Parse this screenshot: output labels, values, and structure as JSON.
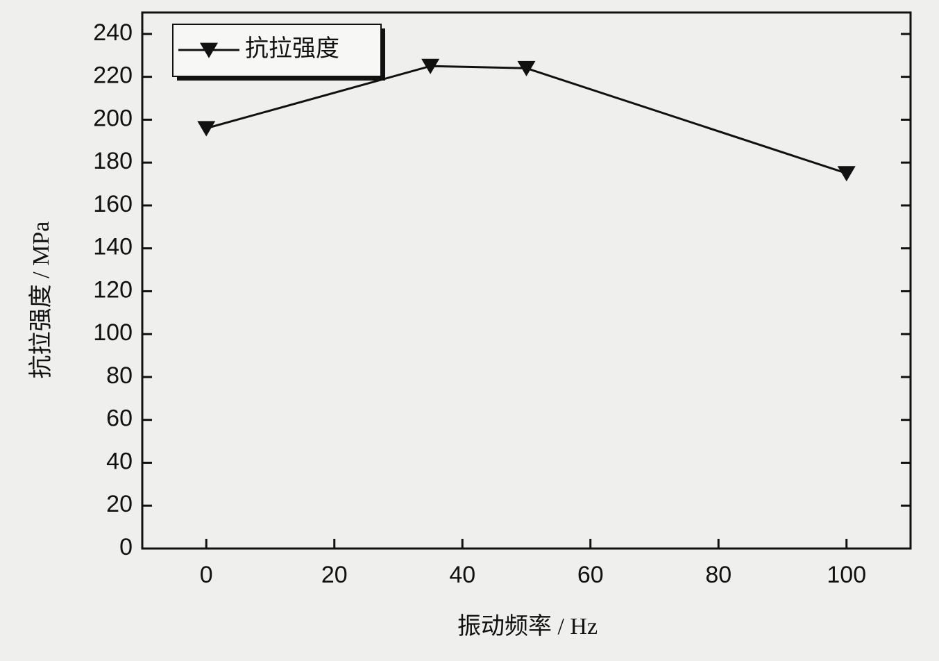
{
  "chart_data": {
    "type": "line",
    "x_label": "振动频率 / Hz",
    "y_label": "抗拉强度 / MPa",
    "series": [
      {
        "name": "抗拉强度",
        "color": "#111111",
        "marker": "triangle-down",
        "x": [
          0,
          35,
          50,
          100
        ],
        "values": [
          196,
          225,
          224,
          175
        ]
      }
    ],
    "xlim": [
      -10,
      110
    ],
    "xticks": [
      0,
      20,
      40,
      60,
      80,
      100
    ],
    "ylim": [
      0,
      250
    ],
    "yticks": [
      0,
      20,
      40,
      60,
      80,
      100,
      120,
      140,
      160,
      180,
      200,
      220,
      240
    ],
    "legend": "top-left"
  }
}
